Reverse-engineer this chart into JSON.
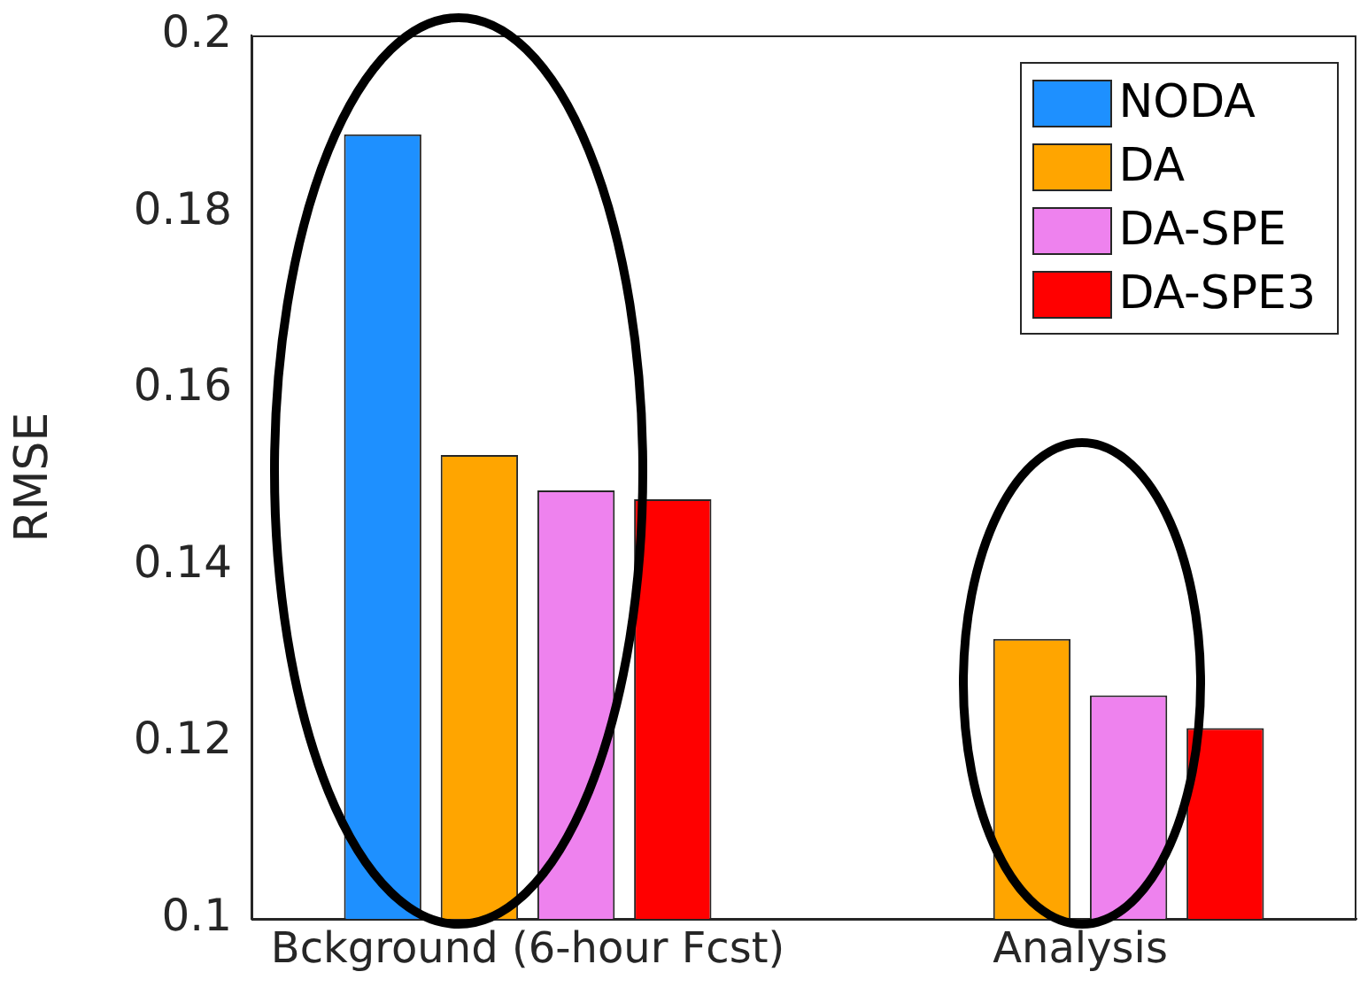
{
  "chart_data": {
    "type": "bar",
    "ylabel": "RMSE",
    "categories": [
      "Bckground (6-hour Fcst)",
      "Analysis"
    ],
    "series": [
      {
        "name": "NODA",
        "color": "#1e90ff",
        "values": [
          0.1888,
          null
        ]
      },
      {
        "name": "DA",
        "color": "#ffa500",
        "values": [
          0.1525,
          0.1317
        ]
      },
      {
        "name": "DA-SPE",
        "color": "#ee82ee",
        "values": [
          0.1485,
          0.1253
        ]
      },
      {
        "name": "DA-SPE3",
        "color": "#ff0000",
        "values": [
          0.1475,
          0.1216
        ]
      }
    ],
    "ylim": [
      0.1,
      0.2
    ],
    "yticks": [
      0.1,
      0.12,
      0.14,
      0.16,
      0.18,
      0.2
    ],
    "grid": false,
    "legend": "top right"
  }
}
